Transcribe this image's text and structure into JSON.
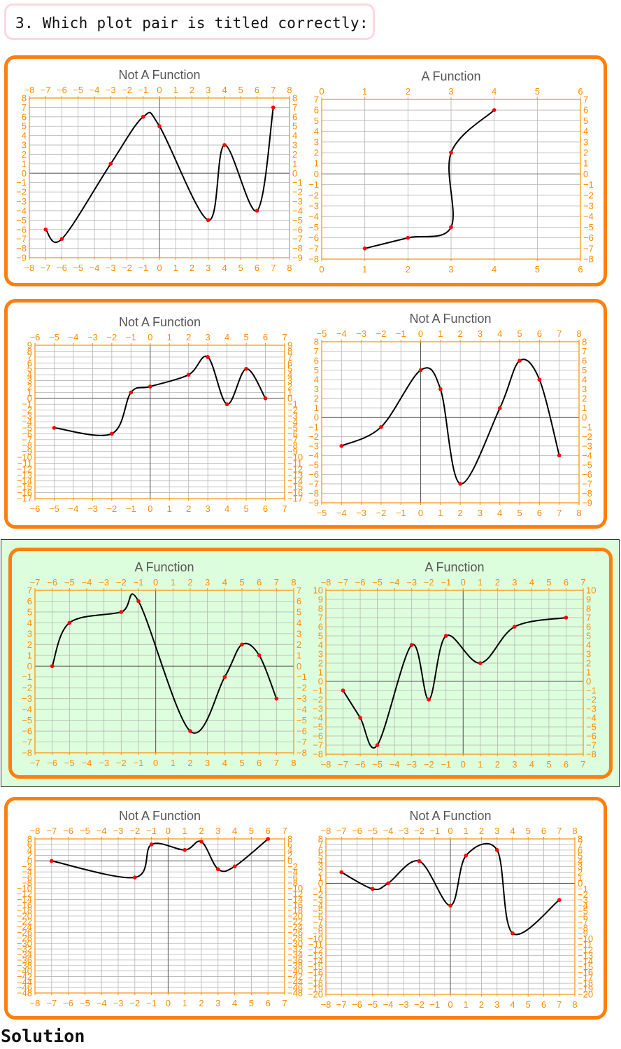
{
  "question": {
    "text": "3. Which plot pair is titled correctly:"
  },
  "solution_label": "Solution",
  "colors": {
    "frame": "#ff7f0e",
    "tick": "#ff8c00",
    "point": "#ff0000",
    "curve": "#000000",
    "highlight": "#ddfedd"
  },
  "rows": [
    {
      "correct": false,
      "plots": [
        {
          "title": "Not A Function",
          "xlim": [
            -8,
            8
          ],
          "ylim": [
            -9,
            8
          ],
          "xticks": [
            -8,
            -7,
            -6,
            -5,
            -4,
            -3,
            -2,
            -1,
            0,
            1,
            2,
            3,
            4,
            5,
            6,
            7,
            8
          ],
          "yticks": [
            -9,
            -8,
            -7,
            -6,
            -5,
            -4,
            -3,
            -2,
            -1,
            0,
            1,
            2,
            3,
            4,
            5,
            6,
            7,
            8
          ],
          "points": [
            [
              -7,
              -6
            ],
            [
              -6,
              -7
            ],
            [
              -3,
              1
            ],
            [
              -1,
              6
            ],
            [
              0,
              5
            ],
            [
              3,
              -5
            ],
            [
              4,
              3
            ],
            [
              6,
              -4
            ],
            [
              7,
              7
            ]
          ]
        },
        {
          "title": "A Function",
          "xlim": [
            0,
            6
          ],
          "ylim": [
            -8,
            7
          ],
          "xticks": [
            0,
            1,
            2,
            3,
            4,
            5,
            6
          ],
          "yticks": [
            -8,
            -7,
            -6,
            -5,
            -4,
            -3,
            -2,
            -1,
            0,
            1,
            2,
            3,
            4,
            5,
            6,
            7
          ],
          "points": [
            [
              1,
              -7
            ],
            [
              2,
              -6
            ],
            [
              3,
              -5
            ],
            [
              3,
              2
            ],
            [
              4,
              6
            ]
          ]
        }
      ]
    },
    {
      "correct": false,
      "plots": [
        {
          "title": "Not A Function",
          "xlim": [
            -6,
            7
          ],
          "ylim": [
            -17,
            9
          ],
          "xticks": [
            -6,
            -5,
            -4,
            -3,
            -2,
            -1,
            0,
            1,
            2,
            3,
            4,
            5,
            6,
            7
          ],
          "yticks": [
            -17,
            -16,
            -15,
            -14,
            -13,
            -12,
            -11,
            -10,
            -9,
            -8,
            -7,
            -6,
            -5,
            -4,
            -3,
            -2,
            -1,
            0,
            1,
            2,
            3,
            4,
            5,
            6,
            7,
            8,
            9
          ],
          "points": [
            [
              -5,
              -5
            ],
            [
              -2,
              -6
            ],
            [
              -1,
              1
            ],
            [
              0,
              2
            ],
            [
              2,
              4
            ],
            [
              3,
              7
            ],
            [
              4,
              -1
            ],
            [
              5,
              5
            ],
            [
              6,
              0
            ]
          ]
        },
        {
          "title": "Not A Function",
          "xlim": [
            -5,
            8
          ],
          "ylim": [
            -9,
            8
          ],
          "xticks": [
            -5,
            -4,
            -3,
            -2,
            -1,
            0,
            1,
            2,
            3,
            4,
            5,
            6,
            7,
            8
          ],
          "yticks": [
            -9,
            -8,
            -7,
            -6,
            -5,
            -4,
            -3,
            -2,
            -1,
            0,
            1,
            2,
            3,
            4,
            5,
            6,
            7,
            8
          ],
          "points": [
            [
              -4,
              -3
            ],
            [
              -2,
              -1
            ],
            [
              0,
              5
            ],
            [
              1,
              3
            ],
            [
              2,
              -7
            ],
            [
              4,
              1
            ],
            [
              5,
              6
            ],
            [
              6,
              4
            ],
            [
              7,
              -4
            ]
          ]
        }
      ]
    },
    {
      "correct": true,
      "plots": [
        {
          "title": "A Function",
          "xlim": [
            -7,
            8
          ],
          "ylim": [
            -8,
            7
          ],
          "xticks": [
            -7,
            -6,
            -5,
            -4,
            -3,
            -2,
            -1,
            0,
            1,
            2,
            3,
            4,
            5,
            6,
            7,
            8
          ],
          "yticks": [
            -8,
            -7,
            -6,
            -5,
            -4,
            -3,
            -2,
            -1,
            0,
            1,
            2,
            3,
            4,
            5,
            6,
            7
          ],
          "points": [
            [
              -6,
              0
            ],
            [
              -5,
              4
            ],
            [
              -2,
              5
            ],
            [
              -1,
              6
            ],
            [
              2,
              -6
            ],
            [
              4,
              -1
            ],
            [
              5,
              2
            ],
            [
              6,
              1
            ],
            [
              7,
              -3
            ]
          ]
        },
        {
          "title": "A Function",
          "xlim": [
            -8,
            7
          ],
          "ylim": [
            -8,
            10
          ],
          "xticks": [
            -8,
            -7,
            -6,
            -5,
            -4,
            -3,
            -2,
            -1,
            0,
            1,
            2,
            3,
            4,
            5,
            6,
            7
          ],
          "yticks": [
            -8,
            -7,
            -6,
            -5,
            -4,
            -3,
            -2,
            -1,
            0,
            1,
            2,
            3,
            4,
            5,
            6,
            7,
            8,
            9,
            10
          ],
          "points": [
            [
              -7,
              -1
            ],
            [
              -6,
              -4
            ],
            [
              -5,
              -7
            ],
            [
              -3,
              4
            ],
            [
              -2,
              -2
            ],
            [
              -1,
              5
            ],
            [
              1,
              2
            ],
            [
              3,
              6
            ],
            [
              6,
              7
            ]
          ]
        }
      ]
    },
    {
      "correct": false,
      "plots": [
        {
          "title": "Not A Function",
          "xlim": [
            -8,
            7
          ],
          "ylim": [
            -48,
            8
          ],
          "xticks": [
            -8,
            -7,
            -6,
            -5,
            -4,
            -3,
            -2,
            -1,
            0,
            1,
            2,
            3,
            4,
            5,
            6,
            7
          ],
          "yticks": [
            -48,
            -46,
            -44,
            -42,
            -40,
            -38,
            -36,
            -34,
            -32,
            -30,
            -28,
            -26,
            -24,
            -22,
            -20,
            -18,
            -16,
            -14,
            -12,
            -10,
            -8,
            -6,
            -4,
            -2,
            0,
            2,
            4,
            6,
            8
          ],
          "points": [
            [
              -7,
              0
            ],
            [
              -2,
              -6
            ],
            [
              -1,
              6
            ],
            [
              1,
              4
            ],
            [
              2,
              7
            ],
            [
              3,
              -3
            ],
            [
              4,
              -2
            ],
            [
              6,
              8
            ]
          ]
        },
        {
          "title": "Not A Function",
          "xlim": [
            -8,
            8
          ],
          "ylim": [
            -20,
            8
          ],
          "xticks": [
            -8,
            -7,
            -6,
            -5,
            -4,
            -3,
            -2,
            -1,
            0,
            1,
            2,
            3,
            4,
            5,
            6,
            7,
            8
          ],
          "yticks": [
            -20,
            -19,
            -18,
            -17,
            -16,
            -15,
            -14,
            -13,
            -12,
            -11,
            -10,
            -9,
            -8,
            -7,
            -6,
            -5,
            -4,
            -3,
            -2,
            -1,
            0,
            1,
            2,
            3,
            4,
            5,
            6,
            7,
            8
          ],
          "points": [
            [
              -7,
              2
            ],
            [
              -5,
              -1
            ],
            [
              -4,
              0
            ],
            [
              -2,
              4
            ],
            [
              0,
              -4
            ],
            [
              1,
              5
            ],
            [
              3,
              6
            ],
            [
              4,
              -9
            ],
            [
              7,
              -3
            ]
          ]
        }
      ]
    }
  ]
}
